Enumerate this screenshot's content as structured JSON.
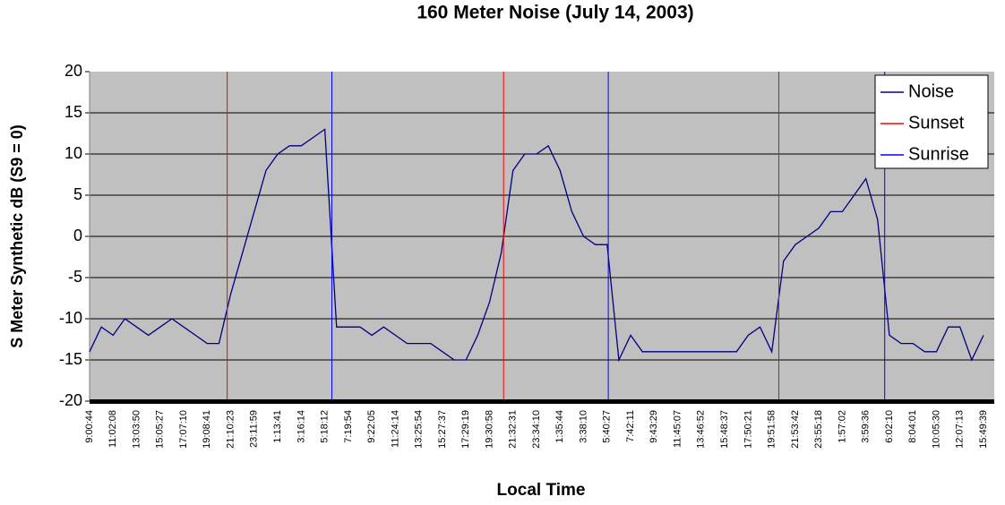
{
  "chart_data": {
    "type": "line",
    "title": "160 Meter Noise (July 14, 2003)",
    "x_label": "Local Time",
    "y_label": "S Meter Synthetic dB (S9 = 0)",
    "categories": [
      "9:00:44",
      null,
      "11:02:08",
      null,
      "13:03:50",
      null,
      "15:05:27",
      null,
      "17:07:10",
      null,
      "19:08:41",
      null,
      "21:10:23",
      null,
      "23:11:59",
      null,
      "1:13:41",
      null,
      "3:16:14",
      null,
      "5:18:12",
      null,
      "7:19:54",
      null,
      "9:22:05",
      null,
      "11:24:14",
      null,
      "13:25:54",
      null,
      "15:27:37",
      null,
      "17:29:19",
      null,
      "19:30:58",
      null,
      "21:32:31",
      null,
      "23:34:10",
      null,
      "1:35:44",
      null,
      "3:38:10",
      null,
      "5:40:27",
      null,
      "7:42:11",
      null,
      "9:43:29",
      null,
      "11:45:07",
      null,
      "13:46:52",
      null,
      "15:48:37",
      null,
      "17:50:21",
      null,
      "19:51:58",
      null,
      "21:53:42",
      null,
      "23:55:18",
      null,
      "1:57:02",
      null,
      "3:59:36",
      null,
      "6:02:10",
      null,
      "8:04:01",
      null,
      "10:05:30",
      null,
      "12:07:13",
      null,
      "15:49:39"
    ],
    "series": [
      {
        "name": "Noise",
        "color": "#000080",
        "values": [
          -14,
          -11,
          -12,
          -10,
          -11,
          -12,
          -11,
          -10,
          -11,
          -12,
          -13,
          -13,
          -7,
          -2,
          3,
          8,
          10,
          11,
          11,
          12,
          13,
          -11,
          -11,
          -11,
          -12,
          -11,
          -12,
          -13,
          -13,
          -13,
          -14,
          -15,
          -15,
          -12,
          -8,
          -2,
          8,
          10,
          10,
          11,
          8,
          3,
          0,
          -1,
          -1,
          -15,
          -12,
          -14,
          -14,
          -14,
          -14,
          -14,
          -14,
          -14,
          -14,
          -14,
          -12,
          -11,
          -14,
          -3,
          -1,
          0,
          1,
          3,
          3,
          5,
          7,
          2,
          -12,
          -13,
          -13,
          -14,
          -14,
          -11,
          -11,
          -15,
          -12
        ]
      },
      {
        "name": "Sunset",
        "color": "#ff0000",
        "x": [
          11.7,
          35.2,
          58.6
        ]
      },
      {
        "name": "Sunrise",
        "color": "#0000ff",
        "x": [
          20.6,
          44.1,
          67.6
        ]
      }
    ],
    "ylim": [
      -20,
      20
    ],
    "yticks": [
      -20,
      -15,
      -10,
      -5,
      0,
      5,
      10,
      15,
      20
    ],
    "grid": true,
    "legend": "top-right"
  }
}
